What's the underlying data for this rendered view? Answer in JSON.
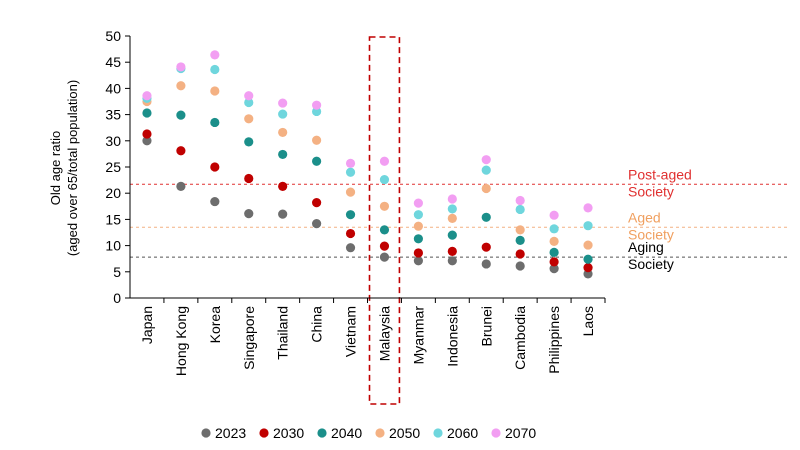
{
  "chart_data": {
    "type": "scatter",
    "title": "",
    "xlabel": "",
    "ylabel": "Old age ratio",
    "ylabel_sub": "(aged over 65/total population)",
    "ylim": [
      0,
      50
    ],
    "yticks": [
      0,
      5,
      10,
      15,
      20,
      25,
      30,
      35,
      40,
      45,
      50
    ],
    "categories": [
      "Japan",
      "Hong Kong",
      "Korea",
      "Singapore",
      "Thailand",
      "China",
      "Vietnam",
      "Malaysia",
      "Myanmar",
      "Indonesia",
      "Brunei",
      "Cambodia",
      "Philippines",
      "Laos"
    ],
    "highlight_category": "Malaysia",
    "legend_position": "bottom",
    "grid": false,
    "series": [
      {
        "name": "2023",
        "color": "#6d6d6d",
        "values": [
          30.0,
          21.3,
          18.4,
          16.1,
          16.0,
          14.2,
          9.6,
          7.8,
          7.1,
          7.1,
          6.5,
          6.1,
          5.6,
          4.6
        ]
      },
      {
        "name": "2030",
        "color": "#c00000",
        "values": [
          31.3,
          28.1,
          25.0,
          22.8,
          21.3,
          18.2,
          12.3,
          9.9,
          8.6,
          8.9,
          9.7,
          8.4,
          6.9,
          5.8
        ]
      },
      {
        "name": "2040",
        "color": "#1b8f8a",
        "values": [
          35.3,
          34.9,
          33.5,
          29.8,
          27.4,
          26.1,
          15.9,
          13.0,
          11.3,
          12.0,
          15.4,
          11.0,
          8.7,
          7.4
        ]
      },
      {
        "name": "2050",
        "color": "#f4b183",
        "values": [
          37.5,
          40.5,
          39.5,
          34.2,
          31.6,
          30.1,
          20.2,
          17.5,
          13.7,
          15.2,
          20.9,
          13.0,
          10.8,
          10.1
        ]
      },
      {
        "name": "2060",
        "color": "#6fd6dd",
        "values": [
          38.1,
          43.8,
          43.6,
          37.3,
          35.1,
          35.6,
          24.0,
          22.6,
          15.9,
          17.0,
          24.4,
          16.9,
          13.2,
          13.8
        ]
      },
      {
        "name": "2070",
        "color": "#f29ef2",
        "values": [
          38.6,
          44.1,
          46.4,
          38.6,
          37.2,
          36.8,
          25.7,
          26.1,
          18.1,
          18.9,
          26.4,
          18.6,
          15.8,
          17.2
        ]
      }
    ],
    "reference_lines": [
      {
        "label": "Post-aged Society",
        "line1": "Post-aged",
        "line2": "Society",
        "value": 21.7,
        "color": "#e03030",
        "text_color": "#e03030"
      },
      {
        "label": "Aged Society",
        "line1": "Aged",
        "line2": "Society",
        "value": 13.5,
        "color": "#f4b183",
        "text_color": "#f0a060"
      },
      {
        "label": "Aging Society",
        "line1": "Aging",
        "line2": "Society",
        "value": 7.8,
        "color": "#555555",
        "text_color": "#000000"
      }
    ]
  }
}
